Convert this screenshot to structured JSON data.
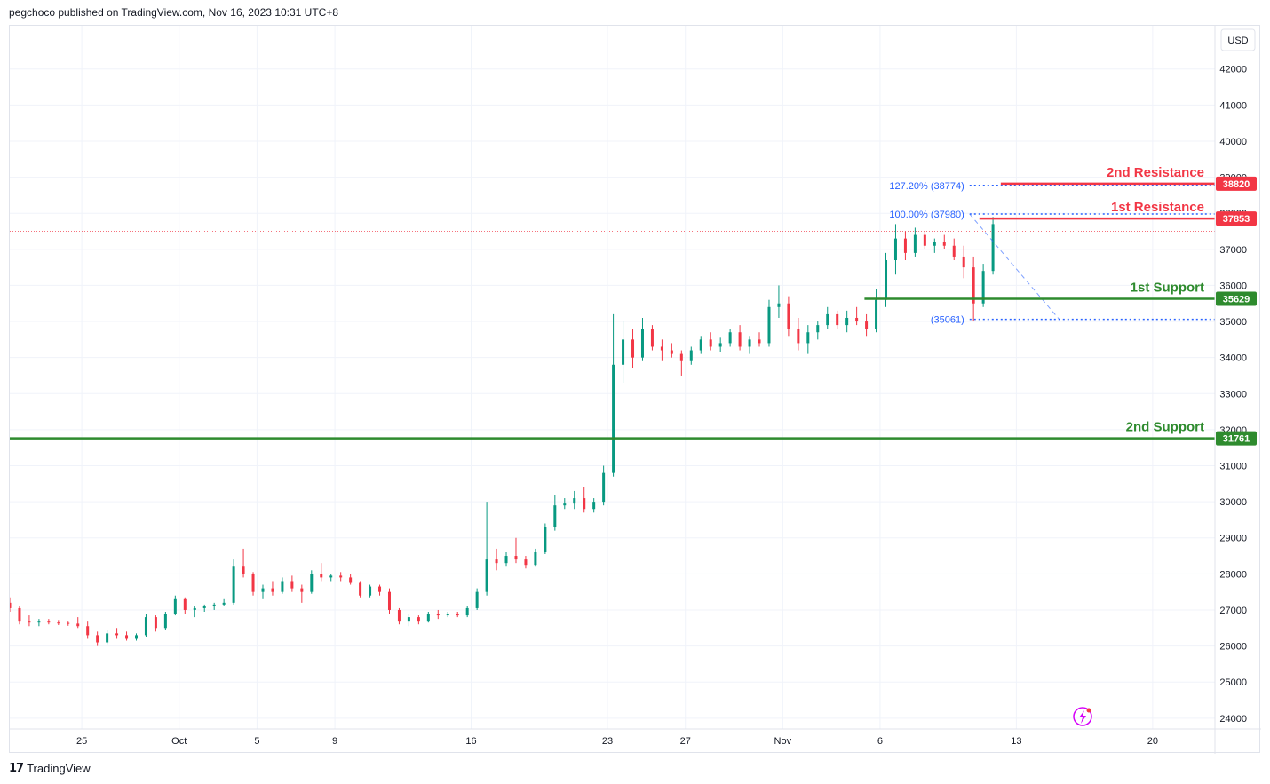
{
  "header": {
    "text": "pegchoco published on TradingView.com, Nov 16, 2023 10:31 UTC+8"
  },
  "footer": {
    "brand": "TradingView",
    "logo": "tradingview-logo"
  },
  "currency_button": "USD",
  "colors": {
    "up": "#089981",
    "down": "#f23645",
    "resistance": "#f23645",
    "support": "#2e8b2e",
    "fib": "#2962ff",
    "price_line": "#f23645",
    "grid": "#f0f3fa",
    "axis_text": "#131722"
  },
  "lightning_icon": "lightning-icon",
  "chart_data": {
    "type": "candlestick",
    "instrument_currency": "USD",
    "y_ticks": [
      24000,
      25000,
      26000,
      27000,
      28000,
      29000,
      30000,
      31000,
      32000,
      33000,
      34000,
      35000,
      36000,
      37000,
      38000,
      39000,
      40000,
      41000,
      42000
    ],
    "ylim": [
      23700,
      43200
    ],
    "x_labels": [
      {
        "label": "25",
        "day": 0
      },
      {
        "label": "Oct",
        "day": 5
      },
      {
        "label": "5",
        "day": 9
      },
      {
        "label": "9",
        "day": 13
      },
      {
        "label": "16",
        "day": 20
      },
      {
        "label": "23",
        "day": 27
      },
      {
        "label": "27",
        "day": 31
      },
      {
        "label": "Nov",
        "day": 36
      },
      {
        "label": "6",
        "day": 41
      },
      {
        "label": "13",
        "day": 48
      },
      {
        "label": "20",
        "day": 55
      }
    ],
    "day_origin_label": "25",
    "xlim_days": [
      -3.7,
      58.2
    ],
    "price_line": 37500,
    "levels": [
      {
        "title": "2nd Resistance",
        "value": 38820,
        "kind": "resistance",
        "from_day": 47.2
      },
      {
        "title": "1st Resistance",
        "value": 37853,
        "kind": "resistance",
        "from_day": 46.1
      },
      {
        "title": "1st Support",
        "value": 35629,
        "kind": "support",
        "from_day": 40.2
      },
      {
        "title": "2nd Support",
        "value": 31761,
        "kind": "support",
        "from_day": -3.7
      }
    ],
    "badges": [
      {
        "text": "38820",
        "value": 38820,
        "kind": "resistance"
      },
      {
        "text": "37853",
        "value": 37853,
        "kind": "resistance"
      },
      {
        "text": "35629",
        "value": 35629,
        "kind": "support"
      },
      {
        "text": "31761",
        "value": 31761,
        "kind": "support"
      }
    ],
    "fib_levels": [
      {
        "label": "127.20% (38774)",
        "value": 38774,
        "from_day": 45.6
      },
      {
        "label": "100.00% (37980)",
        "value": 37980,
        "from_day": 45.6
      },
      {
        "label": "(35061)",
        "value": 35061,
        "from_day": 45.6
      }
    ],
    "fib_line": {
      "from": {
        "day": 45.6,
        "value": 37980
      },
      "to": {
        "day": 50.2,
        "value": 35061
      }
    },
    "candles": [
      [
        -3.7,
        27200,
        27350,
        26950,
        27050
      ],
      [
        -3.2,
        27050,
        27100,
        26600,
        26700
      ],
      [
        -2.7,
        26700,
        26850,
        26550,
        26650
      ],
      [
        -2.2,
        26650,
        26750,
        26550,
        26700
      ],
      [
        -1.7,
        26700,
        26750,
        26600,
        26650
      ],
      [
        -1.2,
        26650,
        26720,
        26580,
        26640
      ],
      [
        -0.7,
        26640,
        26700,
        26560,
        26620
      ],
      [
        -0.2,
        26620,
        26800,
        26500,
        26550
      ],
      [
        0.3,
        26550,
        26700,
        26200,
        26300
      ],
      [
        0.8,
        26300,
        26400,
        26000,
        26100
      ],
      [
        1.3,
        26100,
        26450,
        26050,
        26350
      ],
      [
        1.8,
        26350,
        26500,
        26200,
        26300
      ],
      [
        2.3,
        26300,
        26400,
        26150,
        26200
      ],
      [
        2.8,
        26200,
        26350,
        26150,
        26300
      ],
      [
        3.3,
        26300,
        26900,
        26250,
        26800
      ],
      [
        3.8,
        26800,
        26850,
        26400,
        26500
      ],
      [
        4.3,
        26500,
        26950,
        26450,
        26900
      ],
      [
        4.8,
        26900,
        27400,
        26850,
        27300
      ],
      [
        5.3,
        27300,
        27350,
        26900,
        27000
      ],
      [
        5.8,
        27000,
        27100,
        26800,
        27050
      ],
      [
        6.3,
        27050,
        27150,
        26950,
        27100
      ],
      [
        6.8,
        27100,
        27200,
        27000,
        27150
      ],
      [
        7.3,
        27150,
        27300,
        27100,
        27200
      ],
      [
        7.8,
        27200,
        28400,
        27150,
        28200
      ],
      [
        8.3,
        28200,
        28700,
        27900,
        28000
      ],
      [
        8.8,
        28000,
        28050,
        27400,
        27500
      ],
      [
        9.3,
        27500,
        27700,
        27300,
        27600
      ],
      [
        9.8,
        27600,
        27800,
        27400,
        27500
      ],
      [
        10.3,
        27500,
        27900,
        27450,
        27800
      ],
      [
        10.8,
        27800,
        27950,
        27500,
        27600
      ],
      [
        11.3,
        27600,
        27700,
        27200,
        27500
      ],
      [
        11.8,
        27500,
        28100,
        27450,
        28000
      ],
      [
        12.3,
        28000,
        28300,
        27800,
        27900
      ],
      [
        12.8,
        27900,
        28000,
        27800,
        27950
      ],
      [
        13.3,
        27950,
        28050,
        27800,
        27900
      ],
      [
        13.8,
        27900,
        28000,
        27700,
        27750
      ],
      [
        14.3,
        27750,
        27800,
        27350,
        27400
      ],
      [
        14.8,
        27400,
        27700,
        27350,
        27650
      ],
      [
        15.3,
        27650,
        27700,
        27400,
        27500
      ],
      [
        15.8,
        27500,
        27600,
        26900,
        27000
      ],
      [
        16.3,
        27000,
        27050,
        26600,
        26700
      ],
      [
        16.8,
        26700,
        26900,
        26550,
        26800
      ],
      [
        17.3,
        26800,
        26850,
        26600,
        26700
      ],
      [
        17.8,
        26700,
        26950,
        26650,
        26900
      ],
      [
        18.3,
        26900,
        27000,
        26750,
        26850
      ],
      [
        18.8,
        26850,
        26950,
        26800,
        26900
      ],
      [
        19.3,
        26900,
        26950,
        26800,
        26850
      ],
      [
        19.8,
        26850,
        27100,
        26800,
        27050
      ],
      [
        20.3,
        27050,
        27600,
        27000,
        27500
      ],
      [
        20.8,
        27500,
        30000,
        27400,
        28400
      ],
      [
        21.3,
        28400,
        28700,
        28100,
        28300
      ],
      [
        21.8,
        28300,
        28600,
        28200,
        28500
      ],
      [
        22.3,
        28500,
        29000,
        28300,
        28400
      ],
      [
        22.8,
        28400,
        28500,
        28150,
        28250
      ],
      [
        23.3,
        28250,
        28700,
        28200,
        28600
      ],
      [
        23.8,
        28600,
        29400,
        28550,
        29300
      ],
      [
        24.3,
        29300,
        30200,
        29200,
        29900
      ],
      [
        24.8,
        29900,
        30100,
        29800,
        29950
      ],
      [
        25.3,
        29950,
        30300,
        29800,
        30100
      ],
      [
        25.8,
        30100,
        30400,
        29700,
        29800
      ],
      [
        26.3,
        29800,
        30100,
        29700,
        30000
      ],
      [
        26.8,
        30000,
        31000,
        29900,
        30800
      ],
      [
        27.3,
        30800,
        35200,
        30700,
        33800
      ],
      [
        27.8,
        33800,
        35000,
        33300,
        34500
      ],
      [
        28.3,
        34500,
        34800,
        33700,
        34000
      ],
      [
        28.8,
        34000,
        35100,
        33900,
        34800
      ],
      [
        29.3,
        34800,
        34900,
        34200,
        34300
      ],
      [
        29.8,
        34300,
        34500,
        33900,
        34200
      ],
      [
        30.3,
        34200,
        34400,
        34000,
        34100
      ],
      [
        30.8,
        34100,
        34200,
        33500,
        33900
      ],
      [
        31.3,
        33900,
        34300,
        33800,
        34200
      ],
      [
        31.8,
        34200,
        34600,
        34100,
        34500
      ],
      [
        32.3,
        34500,
        34700,
        34200,
        34300
      ],
      [
        32.8,
        34300,
        34550,
        34150,
        34400
      ],
      [
        33.3,
        34400,
        34800,
        34300,
        34700
      ],
      [
        33.8,
        34700,
        34900,
        34200,
        34300
      ],
      [
        34.3,
        34300,
        34600,
        34100,
        34500
      ],
      [
        34.8,
        34500,
        34700,
        34300,
        34400
      ],
      [
        35.3,
        34400,
        35600,
        34300,
        35400
      ],
      [
        35.8,
        35400,
        36000,
        35100,
        35500
      ],
      [
        36.3,
        35500,
        35700,
        34600,
        34800
      ],
      [
        36.8,
        34800,
        35100,
        34200,
        34400
      ],
      [
        37.3,
        34400,
        34900,
        34100,
        34700
      ],
      [
        37.8,
        34700,
        35000,
        34500,
        34900
      ],
      [
        38.3,
        34900,
        35400,
        34800,
        35200
      ],
      [
        38.8,
        35200,
        35300,
        34800,
        34900
      ],
      [
        39.3,
        34900,
        35300,
        34700,
        35100
      ],
      [
        39.8,
        35100,
        35400,
        34900,
        35000
      ],
      [
        40.3,
        35000,
        35200,
        34600,
        34800
      ],
      [
        40.8,
        34800,
        35900,
        34700,
        35600
      ],
      [
        41.3,
        35600,
        36900,
        35400,
        36700
      ],
      [
        41.8,
        36700,
        37700,
        36300,
        37300
      ],
      [
        42.3,
        37300,
        37500,
        36700,
        36900
      ],
      [
        42.8,
        36900,
        37600,
        36800,
        37400
      ],
      [
        43.3,
        37400,
        37500,
        37000,
        37100
      ],
      [
        43.8,
        37100,
        37300,
        36900,
        37200
      ],
      [
        44.3,
        37200,
        37400,
        37000,
        37100
      ],
      [
        44.8,
        37100,
        37300,
        36700,
        36800
      ],
      [
        45.3,
        36800,
        37100,
        36200,
        36500
      ],
      [
        45.8,
        36500,
        36800,
        35000,
        35500
      ],
      [
        46.3,
        35500,
        36600,
        35400,
        36400
      ],
      [
        46.8,
        36400,
        37900,
        36300,
        37700
      ]
    ]
  }
}
